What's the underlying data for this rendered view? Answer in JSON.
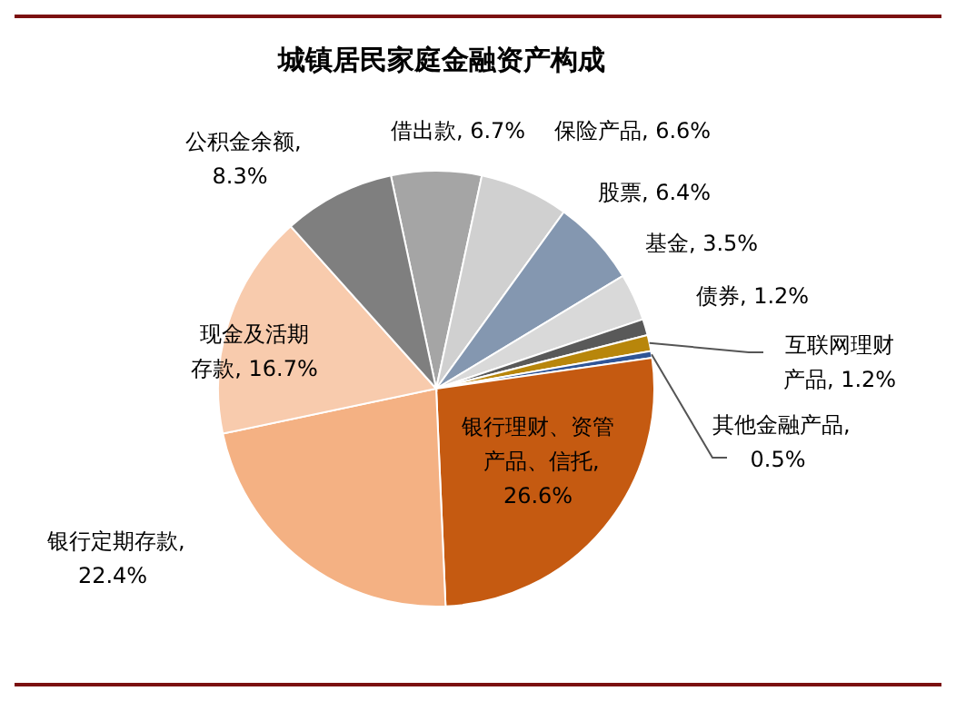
{
  "chart_data": {
    "type": "pie",
    "title": "城镇居民家庭金融资产构成",
    "categories": [
      "借出款",
      "保险产品",
      "股票",
      "基金",
      "债券",
      "互联网理财产品",
      "其他金融产品",
      "银行理财、资管产品、信托",
      "银行定期存款",
      "现金及活期存款",
      "公积金余额"
    ],
    "values": [
      6.7,
      6.6,
      6.4,
      3.5,
      1.2,
      1.2,
      0.5,
      26.6,
      22.4,
      16.7,
      8.3
    ],
    "colors": [
      "#a5a5a5",
      "#d0d0d0",
      "#8497b0",
      "#d9d9d9",
      "#595959",
      "#b8860b",
      "#2f5597",
      "#c55a11",
      "#f4b183",
      "#f8cbad",
      "#7f7f7f"
    ],
    "value_labels": [
      ", 6.7%",
      ", 6.6%",
      ", 6.4%",
      ", 3.5%",
      ", 1.2%",
      ", 1.2%",
      ", 0.5%",
      ", 26.6%",
      ", 22.4%",
      ", 16.7%",
      ", 8.3%"
    ]
  }
}
